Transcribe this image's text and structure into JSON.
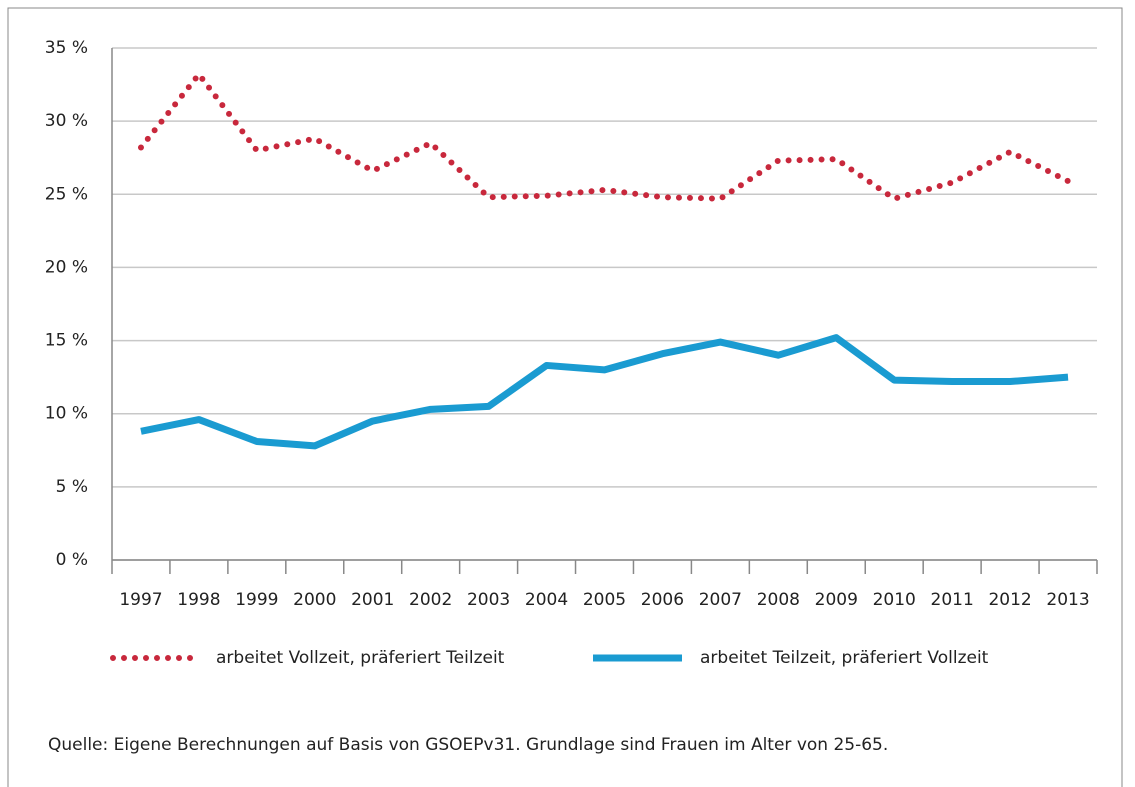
{
  "chart_data": {
    "type": "line",
    "categories": [
      "1997",
      "1998",
      "1999",
      "2000",
      "2001",
      "2002",
      "2003",
      "2004",
      "2005",
      "2006",
      "2007",
      "2008",
      "2009",
      "2010",
      "2011",
      "2012",
      "2013"
    ],
    "series": [
      {
        "name": "arbeitet Vollzeit, präferiert Teilzeit",
        "color": "#c8283c",
        "style": "dotted",
        "values": [
          28.2,
          33.2,
          28.0,
          28.8,
          26.6,
          28.5,
          24.8,
          24.9,
          25.3,
          24.8,
          24.7,
          27.3,
          27.4,
          24.7,
          25.8,
          27.9,
          25.9
        ]
      },
      {
        "name": "arbeitet Teilzeit, präferiert Vollzeit",
        "color": "#1a9bd1",
        "style": "solid",
        "values": [
          8.8,
          9.6,
          8.1,
          7.8,
          9.5,
          10.3,
          10.5,
          13.3,
          13.0,
          14.1,
          14.9,
          14.0,
          15.2,
          12.3,
          12.2,
          12.2,
          12.5
        ]
      }
    ],
    "ylim": [
      0,
      35
    ],
    "yticks": [
      {
        "value": 0,
        "label": "0 %"
      },
      {
        "value": 5,
        "label": "5 %"
      },
      {
        "value": 10,
        "label": "10 %"
      },
      {
        "value": 15,
        "label": "15 %"
      },
      {
        "value": 20,
        "label": "20 %"
      },
      {
        "value": 25,
        "label": "25 %"
      },
      {
        "value": 30,
        "label": "30 %"
      },
      {
        "value": 35,
        "label": "35 %"
      }
    ],
    "grid": true,
    "source": "Quelle: Eigene Berechnungen auf Basis von GSOEPv31. Grundlage sind Frauen im Alter von 25-65."
  }
}
